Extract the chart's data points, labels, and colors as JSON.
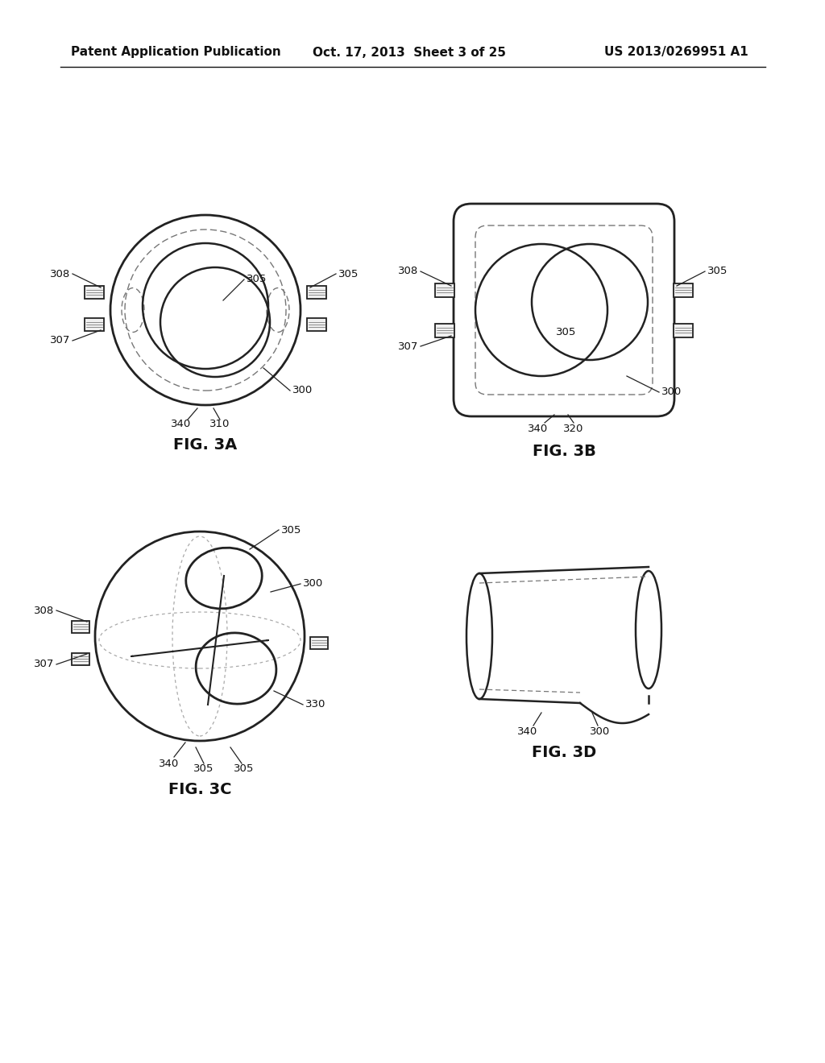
{
  "background_color": "#ffffff",
  "header_left": "Patent Application Publication",
  "header_center": "Oct. 17, 2013  Sheet 3 of 25",
  "header_right": "US 2013/0269951 A1",
  "header_fontsize": 11,
  "fig_label_fontsize": 14,
  "line_color": "#222222",
  "dashed_color": "#666666",
  "text_fontsize": 9.5
}
